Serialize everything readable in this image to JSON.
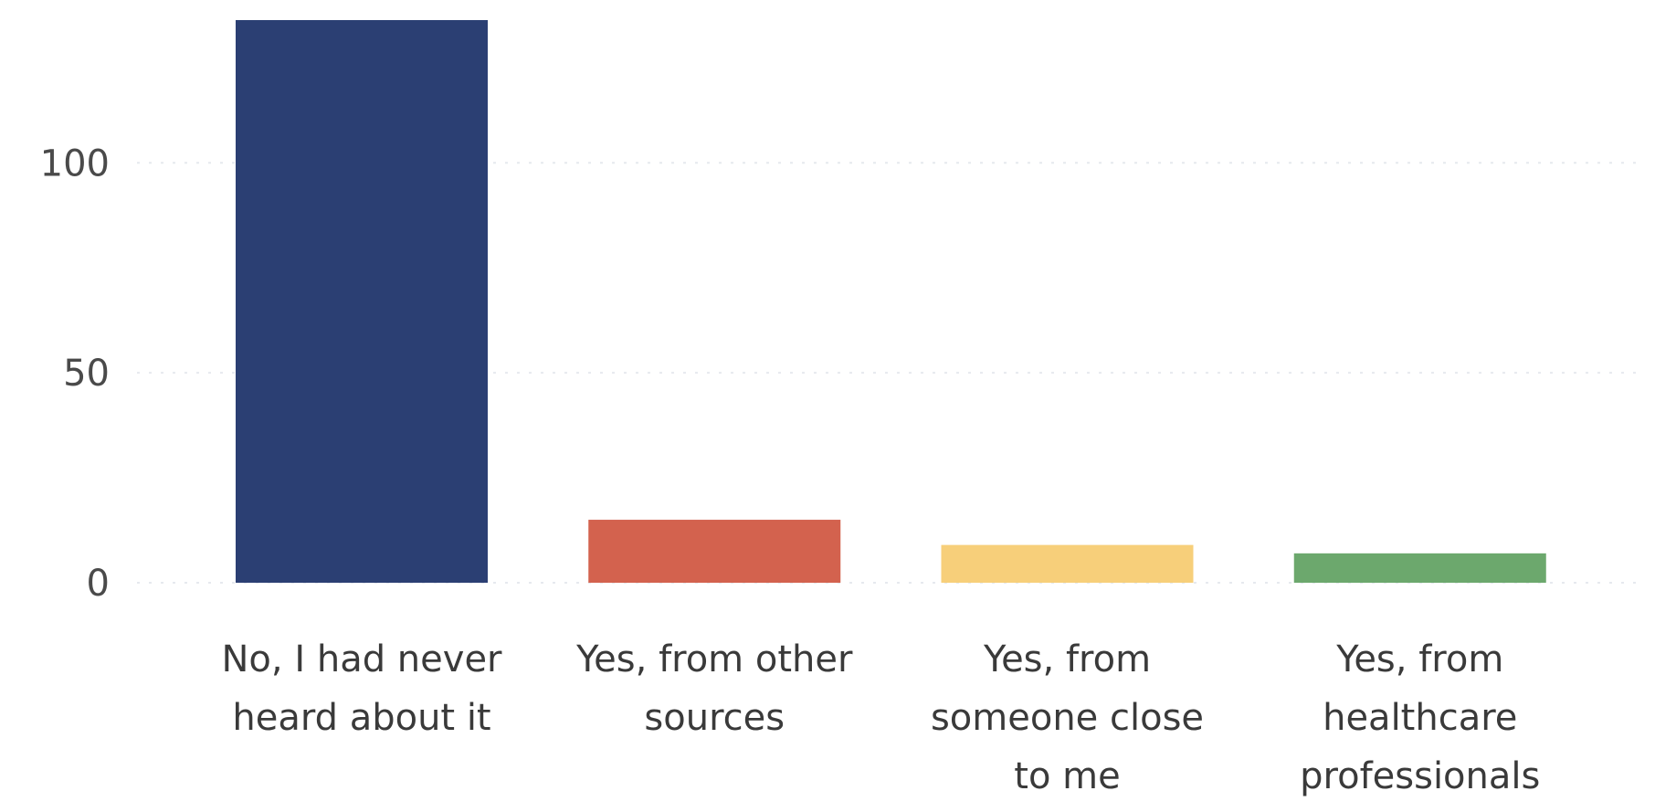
{
  "chart_data": {
    "type": "bar",
    "categories": [
      [
        "No, I had never",
        "heard about it"
      ],
      [
        "Yes, from other",
        "sources"
      ],
      [
        "Yes, from",
        "someone close",
        "to me"
      ],
      [
        "Yes, from",
        "healthcare",
        "professionals"
      ]
    ],
    "values": [
      134,
      15,
      9,
      7
    ],
    "colors": [
      "#2b3f73",
      "#d3624e",
      "#f7cf7a",
      "#6ca86d"
    ],
    "yticks": [
      0,
      50,
      100
    ],
    "ylim": [
      0,
      134
    ],
    "grid": true,
    "title": "",
    "xlabel": "",
    "ylabel": ""
  }
}
